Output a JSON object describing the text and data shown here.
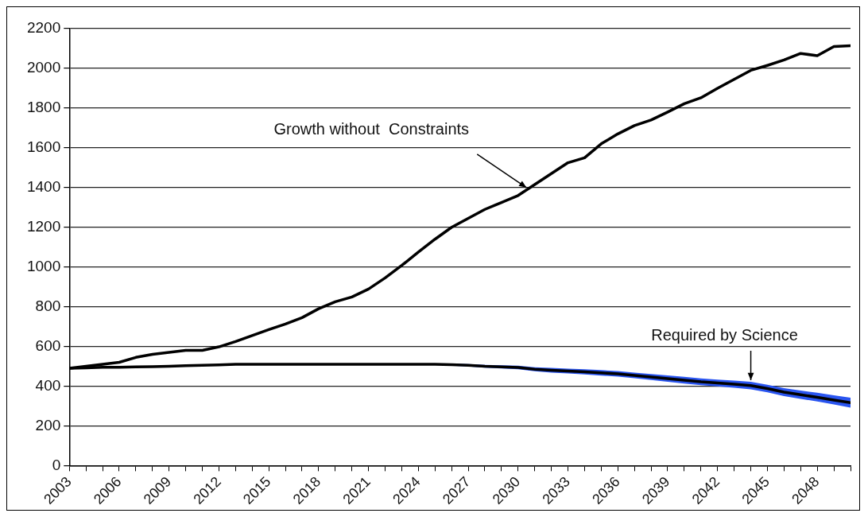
{
  "chart_data": {
    "type": "line",
    "x": [
      2003,
      2004,
      2005,
      2006,
      2007,
      2008,
      2009,
      2010,
      2011,
      2012,
      2013,
      2014,
      2015,
      2016,
      2017,
      2018,
      2019,
      2020,
      2021,
      2022,
      2023,
      2024,
      2025,
      2026,
      2027,
      2028,
      2029,
      2030,
      2031,
      2032,
      2033,
      2034,
      2035,
      2036,
      2037,
      2038,
      2039,
      2040,
      2041,
      2042,
      2043,
      2044,
      2045,
      2046,
      2047,
      2048,
      2049,
      2050
    ],
    "series": [
      {
        "color": "#000000",
        "values": [
          490,
          500,
          510,
          520,
          545,
          560,
          570,
          580,
          580,
          598,
          625,
          655,
          685,
          713,
          745,
          790,
          825,
          849,
          889,
          945,
          1008,
          1075,
          1140,
          1200,
          1245,
          1290,
          1325,
          1360,
          1415,
          1470,
          1525,
          1550,
          1620,
          1670,
          1712,
          1740,
          1780,
          1822,
          1852,
          1900,
          1945,
          1990,
          2015,
          2042,
          2075,
          2064,
          2110,
          2114
        ]
      },
      {
        "color": "#000000",
        "values": [
          490,
          492,
          495,
          495,
          497,
          498,
          500,
          503,
          505,
          507,
          510,
          510,
          510,
          510,
          510,
          510,
          510,
          510,
          510,
          510,
          510,
          510,
          510,
          508,
          505,
          500,
          497,
          494,
          485,
          480,
          476,
          472,
          467,
          462,
          454,
          446,
          438,
          430,
          422,
          416,
          410,
          403,
          388,
          370,
          357,
          344,
          330,
          317
        ],
        "lower": [
          null,
          null,
          null,
          null,
          null,
          null,
          null,
          null,
          null,
          null,
          null,
          null,
          null,
          null,
          null,
          null,
          null,
          null,
          null,
          null,
          null,
          null,
          null,
          503,
          499,
          493,
          489,
          485,
          475,
          468,
          464,
          459,
          453,
          448,
          440,
          431,
          422,
          413,
          405,
          399,
          392,
          384,
          369,
          350,
          336,
          323,
          308,
          292
        ],
        "upper": [
          null,
          null,
          null,
          null,
          null,
          null,
          null,
          null,
          null,
          null,
          null,
          null,
          null,
          null,
          null,
          null,
          null,
          null,
          null,
          null,
          null,
          null,
          null,
          513,
          511,
          507,
          505,
          503,
          495,
          492,
          488,
          485,
          481,
          476,
          468,
          461,
          454,
          447,
          439,
          433,
          428,
          422,
          407,
          390,
          378,
          367,
          354,
          342
        ]
      }
    ],
    "xlim": [
      2003,
      2050
    ],
    "xticks": [
      2003,
      {
        "value": 2004,
        "label": null
      },
      {
        "value": 2005,
        "label": null
      },
      2006,
      {
        "value": 2007,
        "label": null
      },
      {
        "value": 2008,
        "label": null
      },
      2009,
      {
        "value": 2010,
        "label": null
      },
      {
        "value": 2011,
        "label": null
      },
      2012,
      {
        "value": 2013,
        "label": null
      },
      {
        "value": 2014,
        "label": null
      },
      2015,
      {
        "value": 2016,
        "label": null
      },
      {
        "value": 2017,
        "label": null
      },
      2018,
      {
        "value": 2019,
        "label": null
      },
      {
        "value": 2020,
        "label": null
      },
      2021,
      {
        "value": 2022,
        "label": null
      },
      {
        "value": 2023,
        "label": null
      },
      2024,
      {
        "value": 2025,
        "label": null
      },
      {
        "value": 2026,
        "label": null
      },
      2027,
      {
        "value": 2028,
        "label": null
      },
      {
        "value": 2029,
        "label": null
      },
      2030,
      {
        "value": 2031,
        "label": null
      },
      {
        "value": 2032,
        "label": null
      },
      2033,
      {
        "value": 2034,
        "label": null
      },
      {
        "value": 2035,
        "label": null
      },
      2036,
      {
        "value": 2037,
        "label": null
      },
      {
        "value": 2038,
        "label": null
      },
      2039,
      {
        "value": 2040,
        "label": null
      },
      {
        "value": 2041,
        "label": null
      },
      2042,
      {
        "value": 2043,
        "label": null
      },
      {
        "value": 2044,
        "label": null
      },
      2045,
      {
        "value": 2046,
        "label": null
      },
      {
        "value": 2047,
        "label": null
      },
      2048,
      {
        "value": 2049,
        "label": null
      },
      {
        "value": 2050,
        "label": null
      }
    ],
    "ylim": [
      0,
      2200
    ],
    "yticks": [
      0,
      200,
      400,
      600,
      800,
      1000,
      1200,
      1400,
      1600,
      1800,
      2000,
      2200
    ],
    "grid": "y",
    "legend": false,
    "marker": "none",
    "line_style": "solid",
    "annotations": [
      {
        "text": "Growth without  Constraints",
        "x": 2030.5,
        "y": 1400
      },
      {
        "text": "Required by Science",
        "x": 2044,
        "y": 430
      }
    ]
  }
}
